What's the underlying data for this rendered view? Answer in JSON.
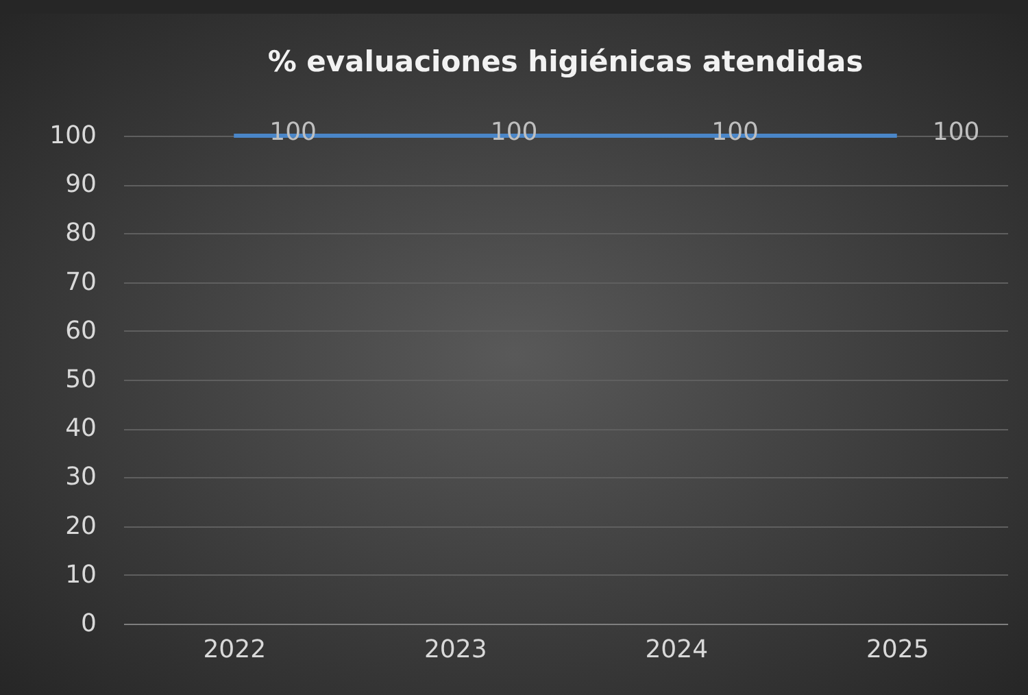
{
  "chart_data": {
    "type": "line",
    "title": "% evaluaciones higiénicas atendidas",
    "categories": [
      "2022",
      "2023",
      "2024",
      "2025"
    ],
    "series": [
      {
        "color": "#4a86c8",
        "values": [
          100,
          100,
          100,
          100
        ]
      }
    ],
    "ylim": [
      0,
      100
    ],
    "yticks": [
      0,
      10,
      20,
      30,
      40,
      50,
      60,
      70,
      80,
      90,
      100
    ],
    "grid": "y",
    "legend": false,
    "marker": "none",
    "line_style": "solid",
    "data_labels": true
  }
}
